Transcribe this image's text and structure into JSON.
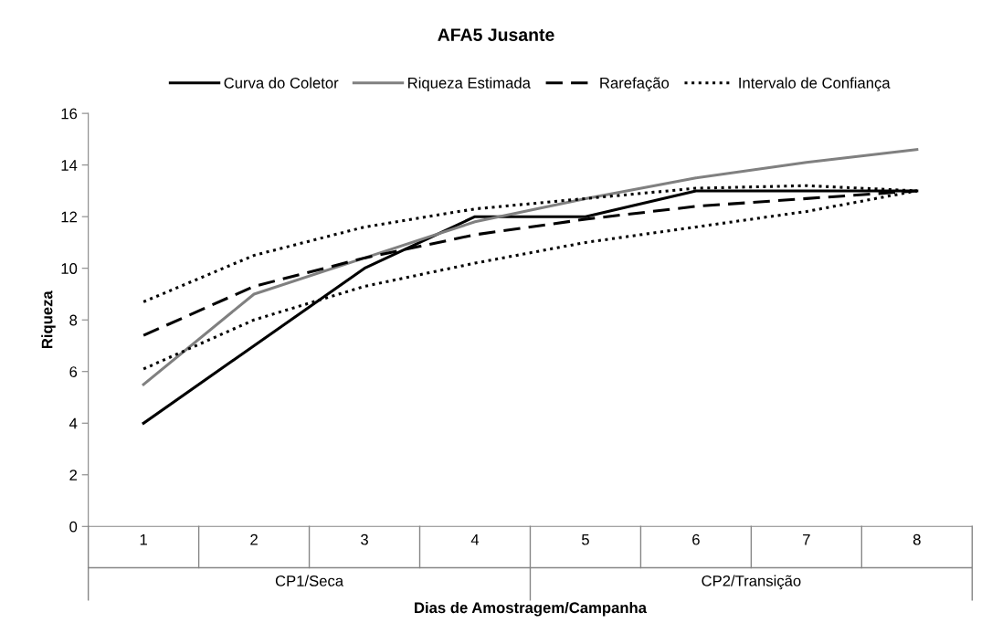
{
  "chart_data": {
    "type": "line",
    "title": "AFA5 Jusante",
    "xlabel": "Dias de Amostragem/Campanha",
    "ylabel": "Riqueza",
    "categories": [
      "1",
      "2",
      "3",
      "4",
      "5",
      "6",
      "7",
      "8"
    ],
    "annotations": [
      "CP1/Seca",
      "CP2/Transição"
    ],
    "series": [
      {
        "name": "Curva do Coletor",
        "color": "#000000",
        "line_style": "solid",
        "values": [
          4,
          7,
          10,
          12,
          12,
          13,
          13,
          13
        ]
      },
      {
        "name": "Riqueza Estimada",
        "color": "#808080",
        "line_style": "solid",
        "values": [
          5.5,
          9.0,
          10.4,
          11.8,
          12.7,
          13.5,
          14.1,
          14.6
        ]
      },
      {
        "name": "Rarefação",
        "color": "#000000",
        "line_style": "dashed",
        "values": [
          7.4,
          9.3,
          10.4,
          11.3,
          11.9,
          12.4,
          12.7,
          13.0
        ]
      },
      {
        "name": "Intervalo de Confiança",
        "color": "#000000",
        "line_style": "dotted",
        "values": [
          8.7,
          10.5,
          11.6,
          12.3,
          12.7,
          13.1,
          13.2,
          13.0
        ]
      },
      {
        "color": "#000000",
        "line_style": "dotted",
        "values": [
          6.1,
          8.0,
          9.3,
          10.2,
          11.0,
          11.6,
          12.2,
          13.0
        ]
      }
    ],
    "ylim": [
      0,
      16
    ],
    "yticks": [
      0,
      2,
      4,
      6,
      8,
      10,
      12,
      14,
      16
    ],
    "grid": false,
    "legend": "top",
    "marker": "none"
  }
}
